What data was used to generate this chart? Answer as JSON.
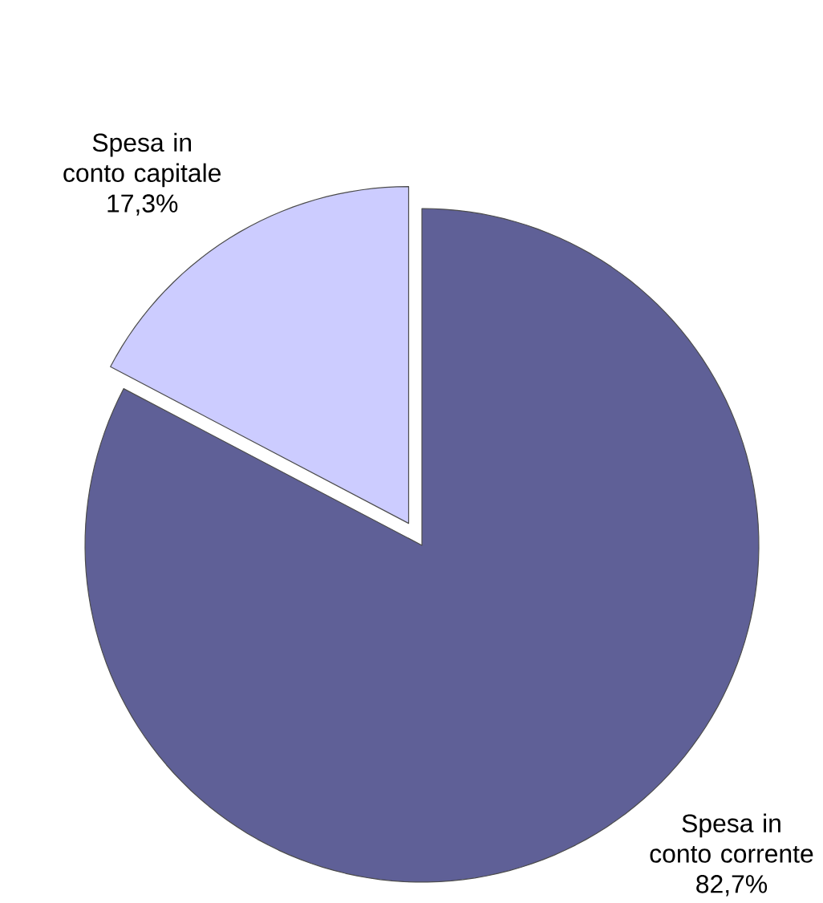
{
  "chart_data": {
    "type": "pie",
    "categories": [
      "Spesa in conto capitale",
      "Spesa in conto corrente"
    ],
    "values": [
      17.3,
      82.7
    ],
    "value_labels": [
      "17,3%",
      "82,7%"
    ],
    "colors": [
      "#ccccff",
      "#5f6097"
    ]
  }
}
